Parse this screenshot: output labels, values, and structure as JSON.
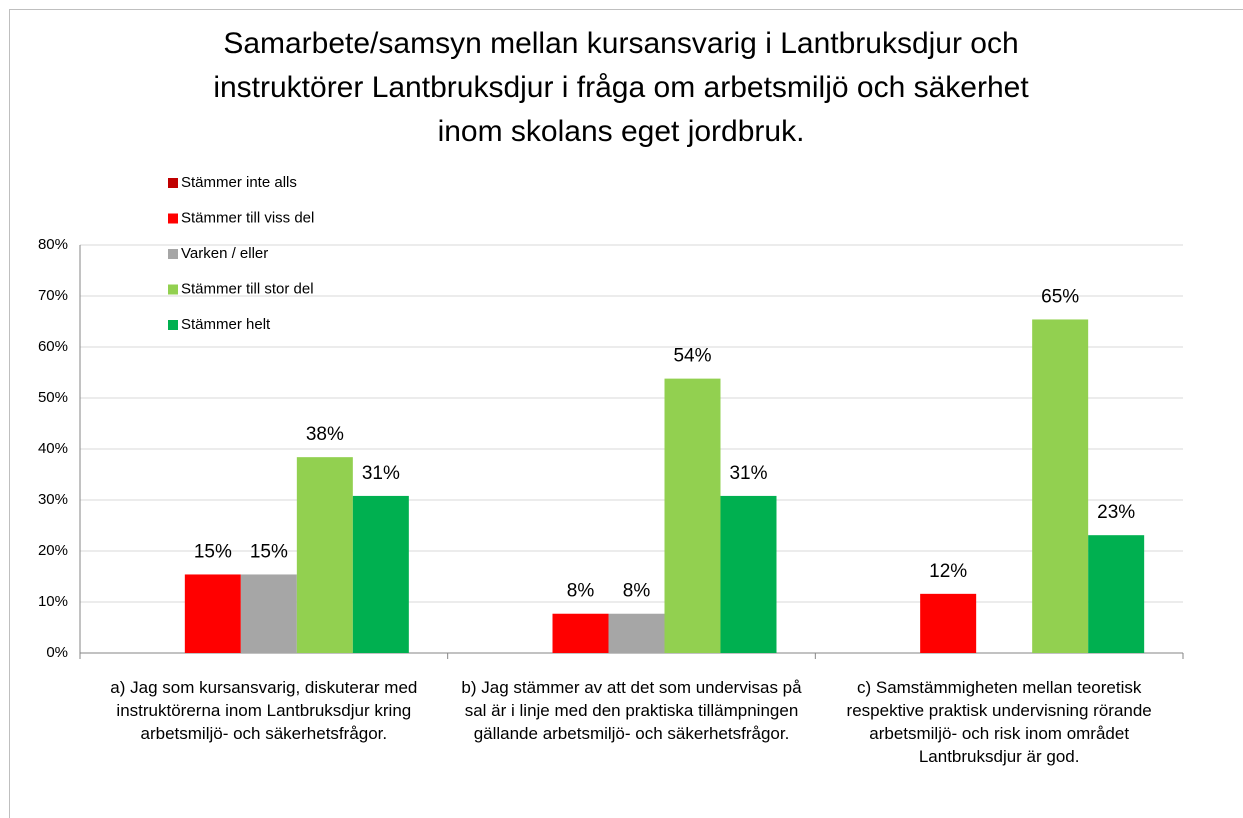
{
  "chart_data": {
    "type": "bar",
    "title": [
      "Samarbete/samsyn mellan kursansvarig i Lantbruksdjur och",
      "instruktörer Lantbruksdjur i fråga om arbetsmiljö och säkerhet",
      "inom skolans eget jordbruk."
    ],
    "categories": [
      "a) Jag som kursansvarig, diskuterar med instruktörerna inom Lantbruksdjur kring arbetsmiljö- och säkerhetsfrågor.",
      "b) Jag stämmer av att det som undervisas på sal är i linje med den praktiska tillämpningen gällande arbetsmiljö- och säkerhetsfrågor.",
      "c) Samstämmigheten mellan teoretisk respektive praktisk undervisning rörande arbetsmiljö- och risk inom området Lantbruksdjur är god."
    ],
    "series": [
      {
        "name": "Stämmer inte alls",
        "color": "#c00000",
        "values": [
          null,
          null,
          null
        ]
      },
      {
        "name": "Stämmer till viss del",
        "color": "#ff0000",
        "values": [
          15.4,
          7.7,
          11.6
        ],
        "value_labels": [
          "15%",
          "8%",
          "12%"
        ]
      },
      {
        "name": "Varken / eller",
        "color": "#a6a6a6",
        "values": [
          15.4,
          7.7,
          null
        ],
        "value_labels": [
          "15%",
          "8%",
          null
        ]
      },
      {
        "name": "Stämmer till stor del",
        "color": "#92d050",
        "values": [
          38.4,
          53.8,
          65.4
        ],
        "value_labels": [
          "38%",
          "54%",
          "65%"
        ]
      },
      {
        "name": "Stämmer helt",
        "color": "#00b050",
        "values": [
          30.8,
          30.8,
          23.1
        ],
        "value_labels": [
          "31%",
          "31%",
          "23%"
        ]
      }
    ],
    "ylim": [
      0,
      80
    ],
    "yticks": [
      {
        "value": 0,
        "label": "0%"
      },
      {
        "value": 10,
        "label": "10%"
      },
      {
        "value": 20,
        "label": "20%"
      },
      {
        "value": 30,
        "label": "30%"
      },
      {
        "value": 40,
        "label": "40%"
      },
      {
        "value": 50,
        "label": "50%"
      },
      {
        "value": 60,
        "label": "60%"
      },
      {
        "value": 70,
        "label": "70%"
      },
      {
        "value": 80,
        "label": "80%"
      }
    ],
    "grid": true,
    "legend": "top-left"
  }
}
